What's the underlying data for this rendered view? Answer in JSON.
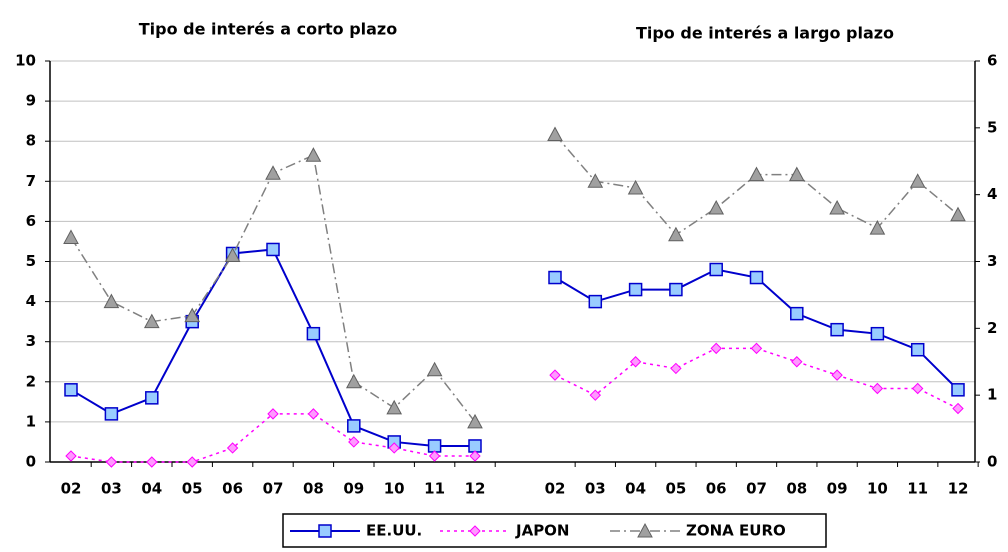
{
  "chart_data": [
    {
      "type": "line",
      "title": "Tipo de interés a corto plazo",
      "categories": [
        "02",
        "03",
        "04",
        "05",
        "06",
        "07",
        "08",
        "09",
        "10",
        "11",
        "12"
      ],
      "ylim": [
        0,
        10
      ],
      "yticks": [
        0,
        1,
        2,
        3,
        4,
        5,
        6,
        7,
        8,
        9,
        10
      ],
      "grid": true,
      "legend": "bottom",
      "series": [
        {
          "name": "EE.UU.",
          "color": "#0000cc",
          "marker": "square",
          "marker_color": "#99ccff",
          "linestyle": "solid",
          "values": [
            1.8,
            1.2,
            1.6,
            3.5,
            5.2,
            5.3,
            3.2,
            0.9,
            0.5,
            0.4,
            0.4
          ]
        },
        {
          "name": "JAPON",
          "color": "#ff00ff",
          "marker": "diamond",
          "marker_color": "#ff99ff",
          "linestyle": "dotted",
          "values": [
            0.15,
            0.0,
            0.0,
            0.0,
            0.35,
            1.2,
            1.2,
            0.5,
            0.35,
            0.15,
            0.15
          ]
        },
        {
          "name": "ZONA EURO",
          "color": "#808080",
          "marker": "triangle",
          "marker_color": "#a0a0a0",
          "linestyle": "dashdot",
          "values": [
            5.6,
            4.0,
            3.5,
            3.65,
            5.15,
            7.2,
            7.65,
            2.0,
            1.35,
            2.3,
            1.0
          ]
        }
      ]
    },
    {
      "type": "line",
      "title": "Tipo de interés a largo plazo",
      "categories": [
        "02",
        "03",
        "04",
        "05",
        "06",
        "07",
        "08",
        "09",
        "10",
        "11",
        "12"
      ],
      "ylim": [
        0,
        10
      ],
      "y2lim": [
        0,
        6
      ],
      "y2ticks": [
        0,
        1,
        2,
        3,
        4,
        5,
        6
      ],
      "series": [
        {
          "color": "#0000cc",
          "marker": "square",
          "marker_color": "#99ccff",
          "linestyle": "solid",
          "axis": "y",
          "values": [
            4.6,
            4.0,
            4.3,
            4.3,
            4.8,
            4.6,
            3.7,
            3.3,
            3.2,
            2.8,
            1.8
          ]
        },
        {
          "color": "#ff00ff",
          "marker": "diamond",
          "marker_color": "#ff99ff",
          "linestyle": "dotted",
          "axis": "y2",
          "values": [
            1.3,
            1.0,
            1.5,
            1.4,
            1.7,
            1.7,
            1.5,
            1.3,
            1.1,
            1.1,
            0.8
          ]
        },
        {
          "color": "#808080",
          "marker": "triangle",
          "marker_color": "#a0a0a0",
          "linestyle": "dashdot",
          "axis": "y2",
          "values": [
            4.9,
            4.2,
            4.1,
            3.4,
            3.8,
            4.3,
            4.3,
            3.8,
            3.5,
            4.2,
            3.7
          ]
        }
      ]
    }
  ]
}
